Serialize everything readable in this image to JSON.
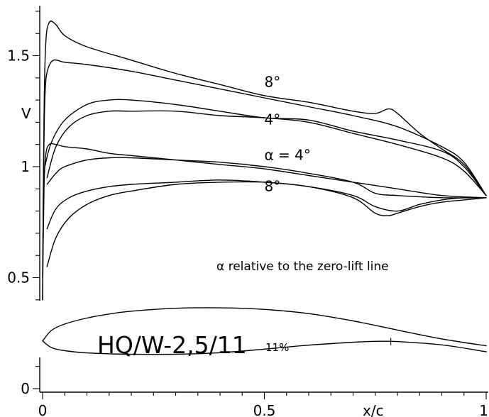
{
  "chart_data": {
    "type": "line",
    "title": "",
    "xlabel": "x/c",
    "ylabel": "V",
    "xlim": [
      0,
      1
    ],
    "ylim": [
      0,
      1.72
    ],
    "x_ticks": [
      "0",
      "0.5",
      "1"
    ],
    "y_ticks": [
      "0",
      "0.5",
      "1",
      "1.5"
    ],
    "grid": false,
    "note": "α relative to the zero-lift line",
    "airfoil": {
      "name": "HQ/W-2,5/11",
      "thickness": "11%",
      "upper": {
        "x": [
          0,
          0.02,
          0.05,
          0.1,
          0.15,
          0.2,
          0.3,
          0.4,
          0.5,
          0.6,
          0.7,
          0.8,
          0.9,
          1.0
        ],
        "y": [
          0.215,
          0.262,
          0.291,
          0.318,
          0.336,
          0.349,
          0.362,
          0.364,
          0.357,
          0.338,
          0.305,
          0.264,
          0.224,
          0.193
        ]
      },
      "lower": {
        "x": [
          0,
          0.02,
          0.05,
          0.1,
          0.15,
          0.2,
          0.3,
          0.4,
          0.5,
          0.6,
          0.7,
          0.75,
          0.8,
          0.9,
          1.0
        ],
        "y": [
          0.215,
          0.185,
          0.171,
          0.161,
          0.157,
          0.155,
          0.155,
          0.162,
          0.178,
          0.196,
          0.209,
          0.213,
          0.212,
          0.197,
          0.166
        ]
      }
    },
    "series_labels": [
      {
        "text": "8°",
        "x": 0.5,
        "y": 1.36
      },
      {
        "text": "4°",
        "x": 0.5,
        "y": 1.19
      },
      {
        "text": "α = 4°",
        "x": 0.5,
        "y": 1.03
      },
      {
        "text": "8°",
        "x": 0.5,
        "y": 0.89
      }
    ],
    "series": [
      {
        "x": [
          0,
          0.003,
          0.007,
          0.015,
          0.03,
          0.05,
          0.1,
          0.2,
          0.3,
          0.4,
          0.5,
          0.6,
          0.7,
          0.75,
          0.78,
          0.8,
          0.85,
          0.9,
          0.95,
          1.0
        ],
        "y": [
          0.4,
          1.2,
          1.55,
          1.65,
          1.64,
          1.59,
          1.54,
          1.48,
          1.42,
          1.37,
          1.32,
          1.29,
          1.25,
          1.24,
          1.26,
          1.24,
          1.15,
          1.08,
          1.01,
          0.87
        ]
      },
      {
        "x": [
          0,
          0.003,
          0.006,
          0.012,
          0.025,
          0.05,
          0.1,
          0.2,
          0.3,
          0.4,
          0.5,
          0.6,
          0.7,
          0.8,
          0.9,
          0.95,
          1.0
        ],
        "y": [
          0.5,
          1.1,
          1.35,
          1.44,
          1.48,
          1.47,
          1.46,
          1.43,
          1.39,
          1.35,
          1.31,
          1.27,
          1.23,
          1.18,
          1.09,
          1.02,
          0.87
        ]
      },
      {
        "x": [
          0.005,
          0.02,
          0.05,
          0.1,
          0.15,
          0.2,
          0.3,
          0.4,
          0.5,
          0.6,
          0.7,
          0.8,
          0.9,
          0.95,
          1.0
        ],
        "y": [
          1.0,
          1.11,
          1.21,
          1.28,
          1.3,
          1.3,
          1.28,
          1.25,
          1.22,
          1.21,
          1.16,
          1.12,
          1.07,
          1.0,
          0.87
        ]
      },
      {
        "x": [
          0.01,
          0.03,
          0.06,
          0.1,
          0.15,
          0.2,
          0.3,
          0.4,
          0.5,
          0.6,
          0.7,
          0.8,
          0.9,
          0.95,
          1.0
        ],
        "y": [
          0.95,
          1.09,
          1.18,
          1.23,
          1.25,
          1.25,
          1.25,
          1.23,
          1.22,
          1.2,
          1.15,
          1.1,
          1.04,
          0.98,
          0.87
        ]
      },
      {
        "x": [
          0,
          0.003,
          0.007,
          0.015,
          0.03,
          0.05,
          0.1,
          0.15,
          0.2,
          0.3,
          0.4,
          0.5,
          0.6,
          0.7,
          0.8,
          0.9,
          1.0
        ],
        "y": [
          0.4,
          0.88,
          1.05,
          1.1,
          1.1,
          1.09,
          1.08,
          1.06,
          1.05,
          1.03,
          1.01,
          0.99,
          0.96,
          0.93,
          0.9,
          0.87,
          0.86
        ]
      },
      {
        "x": [
          0.01,
          0.03,
          0.05,
          0.1,
          0.15,
          0.2,
          0.3,
          0.4,
          0.5,
          0.6,
          0.7,
          0.75,
          0.8,
          0.9,
          1.0
        ],
        "y": [
          0.92,
          0.97,
          1.0,
          1.03,
          1.04,
          1.04,
          1.03,
          1.02,
          1.0,
          0.97,
          0.93,
          0.88,
          0.87,
          0.86,
          0.86
        ]
      },
      {
        "x": [
          0.01,
          0.03,
          0.06,
          0.1,
          0.15,
          0.2,
          0.3,
          0.4,
          0.5,
          0.6,
          0.7,
          0.75,
          0.78,
          0.8,
          0.85,
          0.9,
          0.95,
          1.0
        ],
        "y": [
          0.72,
          0.81,
          0.86,
          0.89,
          0.91,
          0.92,
          0.93,
          0.94,
          0.93,
          0.91,
          0.86,
          0.79,
          0.78,
          0.79,
          0.82,
          0.84,
          0.85,
          0.86
        ]
      },
      {
        "x": [
          0.01,
          0.03,
          0.06,
          0.1,
          0.15,
          0.2,
          0.3,
          0.4,
          0.5,
          0.6,
          0.7,
          0.75,
          0.8,
          0.85,
          0.9,
          0.95,
          1.0
        ],
        "y": [
          0.55,
          0.68,
          0.77,
          0.83,
          0.87,
          0.89,
          0.92,
          0.93,
          0.93,
          0.91,
          0.87,
          0.82,
          0.8,
          0.83,
          0.85,
          0.86,
          0.86
        ]
      }
    ]
  }
}
